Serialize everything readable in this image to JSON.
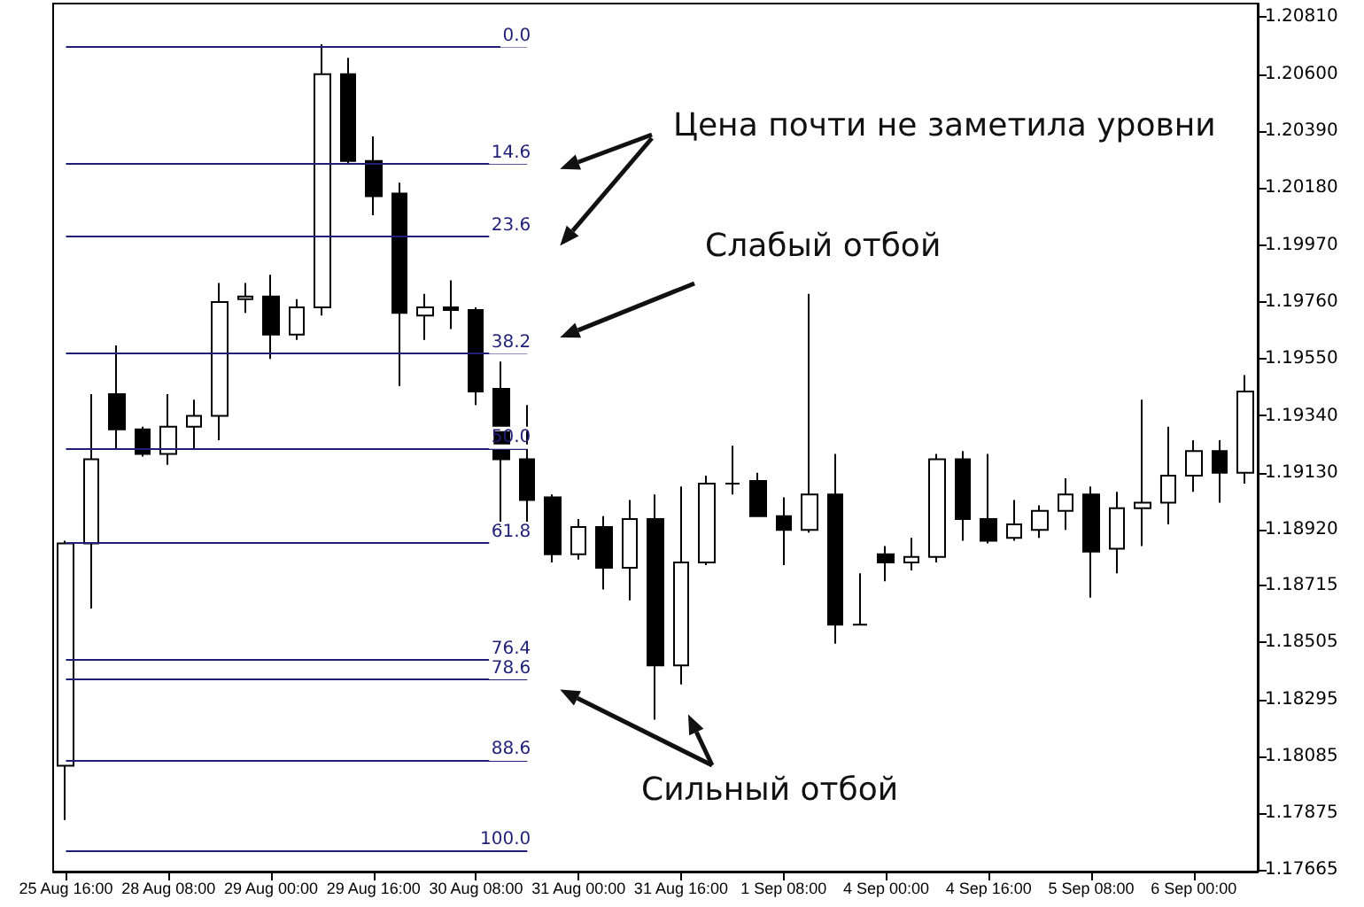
{
  "chart_data": {
    "type": "candlestick",
    "categories": [
      "25 Aug 16:00",
      null,
      null,
      null,
      "28 Aug 08:00",
      null,
      null,
      null,
      "29 Aug 00:00",
      null,
      null,
      null,
      "29 Aug 16:00",
      null,
      null,
      null,
      "30 Aug 08:00",
      null,
      null,
      null,
      "31 Aug 00:00",
      null,
      null,
      null,
      "31 Aug 16:00",
      null,
      null,
      null,
      "1 Sep 08:00",
      null,
      null,
      null,
      "4 Sep 00:00",
      null,
      null,
      null,
      "4 Sep 16:00",
      null,
      null,
      null,
      "5 Sep 08:00",
      null,
      null,
      null,
      "6 Sep 00:00",
      null,
      null
    ],
    "ohlc": [
      [
        1.1805,
        1.1888,
        1.1785,
        1.1887
      ],
      [
        1.1887,
        1.1942,
        1.1863,
        1.1918
      ],
      [
        1.1942,
        1.196,
        1.1922,
        1.1929
      ],
      [
        1.1929,
        1.193,
        1.1919,
        1.192
      ],
      [
        1.192,
        1.1942,
        1.1916,
        1.193
      ],
      [
        1.193,
        1.194,
        1.1922,
        1.1934
      ],
      [
        1.1934,
        1.1983,
        1.1925,
        1.1976
      ],
      [
        1.1977,
        1.1983,
        1.1972,
        1.1978
      ],
      [
        1.1978,
        1.1986,
        1.1955,
        1.1964
      ],
      [
        1.1964,
        1.1977,
        1.1962,
        1.1974
      ],
      [
        1.1974,
        1.2071,
        1.1971,
        1.206
      ],
      [
        1.206,
        1.2066,
        1.2027,
        1.2028
      ],
      [
        1.2028,
        1.2037,
        1.2008,
        1.2015
      ],
      [
        1.2016,
        1.202,
        1.1945,
        1.1972
      ],
      [
        1.1971,
        1.1979,
        1.1962,
        1.1974
      ],
      [
        1.1974,
        1.1984,
        1.1966,
        1.1973
      ],
      [
        1.1973,
        1.1974,
        1.1938,
        1.1943
      ],
      [
        1.1944,
        1.1954,
        1.1893,
        1.1918
      ],
      [
        1.1918,
        1.1938,
        1.1895,
        1.1903
      ],
      [
        1.1904,
        1.1905,
        1.188,
        1.1883
      ],
      [
        1.1883,
        1.1896,
        1.1881,
        1.1893
      ],
      [
        1.1893,
        1.1897,
        1.187,
        1.1878
      ],
      [
        1.1878,
        1.1903,
        1.1866,
        1.1896
      ],
      [
        1.1896,
        1.1905,
        1.1822,
        1.1842
      ],
      [
        1.1842,
        1.1908,
        1.1835,
        1.188
      ],
      [
        1.188,
        1.1912,
        1.1879,
        1.1909
      ],
      [
        1.1909,
        1.1923,
        1.1905,
        1.1909
      ],
      [
        1.191,
        1.1913,
        1.1897,
        1.1897
      ],
      [
        1.1897,
        1.1904,
        1.1879,
        1.1892
      ],
      [
        1.1892,
        1.1979,
        1.1891,
        1.1905
      ],
      [
        1.1905,
        1.192,
        1.185,
        1.1857
      ],
      [
        1.1857,
        1.1876,
        1.1857,
        1.1857
      ],
      [
        1.1883,
        1.1886,
        1.1873,
        1.188
      ],
      [
        1.188,
        1.1889,
        1.1877,
        1.1882
      ],
      [
        1.1882,
        1.192,
        1.188,
        1.1918
      ],
      [
        1.1918,
        1.1921,
        1.1888,
        1.1896
      ],
      [
        1.1896,
        1.192,
        1.1887,
        1.1888
      ],
      [
        1.1889,
        1.1903,
        1.1888,
        1.1894
      ],
      [
        1.1892,
        1.1901,
        1.1889,
        1.1899
      ],
      [
        1.1899,
        1.1911,
        1.1892,
        1.1905
      ],
      [
        1.1905,
        1.1908,
        1.1867,
        1.1884
      ],
      [
        1.1885,
        1.1906,
        1.1876,
        1.19
      ],
      [
        1.19,
        1.194,
        1.1886,
        1.1902
      ],
      [
        1.1902,
        1.193,
        1.1894,
        1.1912
      ],
      [
        1.1912,
        1.1925,
        1.1906,
        1.1921
      ],
      [
        1.1921,
        1.1925,
        1.1902,
        1.1913
      ],
      [
        1.1913,
        1.1949,
        1.1909,
        1.1943
      ]
    ],
    "ylim": [
      1.1766,
      1.2086
    ],
    "yticks": [
      {
        "value": 1.17665,
        "label": "1.17665"
      },
      {
        "value": 1.17875,
        "label": "1.17875"
      },
      {
        "value": 1.18085,
        "label": "1.18085"
      },
      {
        "value": 1.18295,
        "label": "1.18295"
      },
      {
        "value": 1.18505,
        "label": "1.18505"
      },
      {
        "value": 1.18715,
        "label": "1.18715"
      },
      {
        "value": 1.1892,
        "label": "1.18920"
      },
      {
        "value": 1.1913,
        "label": "1.19130"
      },
      {
        "value": 1.1934,
        "label": "1.19340"
      },
      {
        "value": 1.1955,
        "label": "1.19550"
      },
      {
        "value": 1.1976,
        "label": "1.19760"
      },
      {
        "value": 1.1997,
        "label": "1.19970"
      },
      {
        "value": 1.2018,
        "label": "1.20180"
      },
      {
        "value": 1.2039,
        "label": "1.20390"
      },
      {
        "value": 1.206,
        "label": "1.20600"
      },
      {
        "value": 1.2081,
        "label": "1.20810"
      }
    ],
    "ref_lines": [
      {
        "axis": "y",
        "value": 1.207,
        "color": "#1f1f78"
      },
      {
        "axis": "y",
        "value": 1.2027,
        "color": "#1f1f78"
      },
      {
        "axis": "y",
        "value": 1.2,
        "color": "#1f1f78"
      },
      {
        "axis": "y",
        "value": 1.1957,
        "color": "#1f1f78"
      },
      {
        "axis": "y",
        "value": 1.1922,
        "color": "#1f1f78"
      },
      {
        "axis": "y",
        "value": 1.1887,
        "color": "#1f1f78"
      },
      {
        "axis": "y",
        "value": 1.1844,
        "color": "#1f1f78"
      },
      {
        "axis": "y",
        "value": 1.1837,
        "color": "#1f1f78"
      },
      {
        "axis": "y",
        "value": 1.1807,
        "color": "#1f1f78"
      },
      {
        "axis": "y",
        "value": 1.1774,
        "color": "#1f1f78"
      }
    ],
    "annotations": [
      "Цена почти не заметила уровни",
      "Слабый отбой",
      "Сильный отбой",
      {
        "text": "0.0",
        "y": 1.207
      },
      {
        "text": "14.6",
        "y": 1.2027
      },
      {
        "text": "23.6",
        "y": 1.2
      },
      {
        "text": "38.2",
        "y": 1.1957
      },
      {
        "text": "50.0",
        "y": 1.1922
      },
      {
        "text": "61.8",
        "y": 1.1887
      },
      {
        "text": "76.4",
        "y": 1.1844
      },
      {
        "text": "78.6",
        "y": 1.1837
      },
      {
        "text": "88.6",
        "y": 1.1807
      },
      {
        "text": "100.0",
        "y": 1.1774
      }
    ],
    "grid": false
  }
}
